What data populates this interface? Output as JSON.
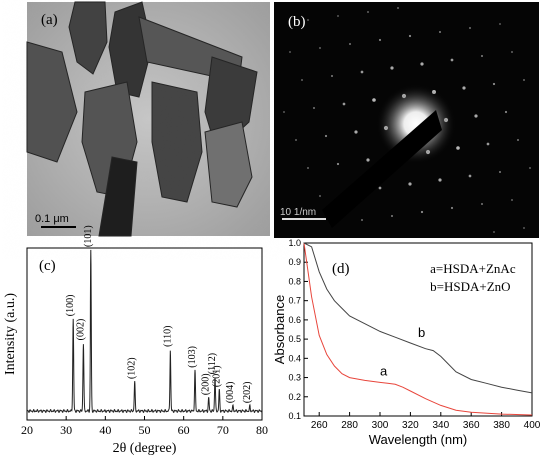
{
  "panel_a": {
    "label": "(a)",
    "scale_text": "0.1 μm"
  },
  "panel_b": {
    "label": "(b)",
    "scale_text": "10 1/nm"
  },
  "chart_data": [
    {
      "panel_label": "(c)",
      "type": "line",
      "xlabel": "2θ (degree)",
      "ylabel": "Intensity (a.u.)",
      "xlim": [
        20,
        80
      ],
      "xticks": [
        20,
        30,
        40,
        50,
        60,
        70,
        80
      ],
      "line_color": "#222222",
      "peaks": [
        {
          "x": 31.8,
          "height": 0.57,
          "hkl": "(100)"
        },
        {
          "x": 34.4,
          "height": 0.42,
          "hkl": "(002)"
        },
        {
          "x": 36.3,
          "height": 1.0,
          "hkl": "(101)"
        },
        {
          "x": 47.5,
          "height": 0.18,
          "hkl": "(102)"
        },
        {
          "x": 56.6,
          "height": 0.38,
          "hkl": "(110)"
        },
        {
          "x": 62.9,
          "height": 0.25,
          "hkl": "(103)"
        },
        {
          "x": 66.4,
          "height": 0.08,
          "hkl": "(200)"
        },
        {
          "x": 68.0,
          "height": 0.21,
          "hkl": "(112)"
        },
        {
          "x": 69.1,
          "height": 0.13,
          "hkl": "(201)"
        },
        {
          "x": 72.6,
          "height": 0.03,
          "hkl": "(004)"
        },
        {
          "x": 76.9,
          "height": 0.03,
          "hkl": "(202)"
        }
      ]
    },
    {
      "panel_label": "(d)",
      "type": "line",
      "xlabel": "Wavelength (nm)",
      "ylabel": "Absorbance",
      "xlim": [
        250,
        400
      ],
      "ylim": [
        0.1,
        1.0
      ],
      "xticks": [
        260,
        280,
        300,
        320,
        340,
        360,
        380,
        400
      ],
      "yticks": [
        0.1,
        0.2,
        0.3,
        0.4,
        0.5,
        0.6,
        0.7,
        0.8,
        0.9,
        1.0
      ],
      "legend_lines": [
        "a=HSDA+ZnAc",
        "b=HSDA+ZnO"
      ],
      "legend_position": "top-right",
      "series": [
        {
          "name": "a",
          "color": "#e8463c",
          "x": [
            250,
            255,
            260,
            265,
            270,
            275,
            280,
            290,
            300,
            305,
            310,
            315,
            320,
            330,
            340,
            350,
            360,
            380,
            400
          ],
          "y": [
            1.0,
            0.72,
            0.52,
            0.42,
            0.36,
            0.32,
            0.3,
            0.285,
            0.275,
            0.27,
            0.265,
            0.25,
            0.23,
            0.19,
            0.155,
            0.13,
            0.12,
            0.11,
            0.105
          ]
        },
        {
          "name": "b",
          "color": "#444444",
          "x": [
            250,
            255,
            260,
            265,
            270,
            275,
            280,
            290,
            300,
            310,
            320,
            330,
            335,
            340,
            345,
            350,
            360,
            370,
            380,
            390,
            400
          ],
          "y": [
            1.0,
            0.98,
            0.85,
            0.76,
            0.7,
            0.66,
            0.62,
            0.58,
            0.54,
            0.51,
            0.48,
            0.45,
            0.44,
            0.41,
            0.37,
            0.33,
            0.29,
            0.27,
            0.25,
            0.235,
            0.22
          ]
        }
      ],
      "series_labels": [
        {
          "text": "a",
          "x": 300,
          "y": 0.31
        },
        {
          "text": "b",
          "x": 325,
          "y": 0.51
        }
      ]
    }
  ]
}
